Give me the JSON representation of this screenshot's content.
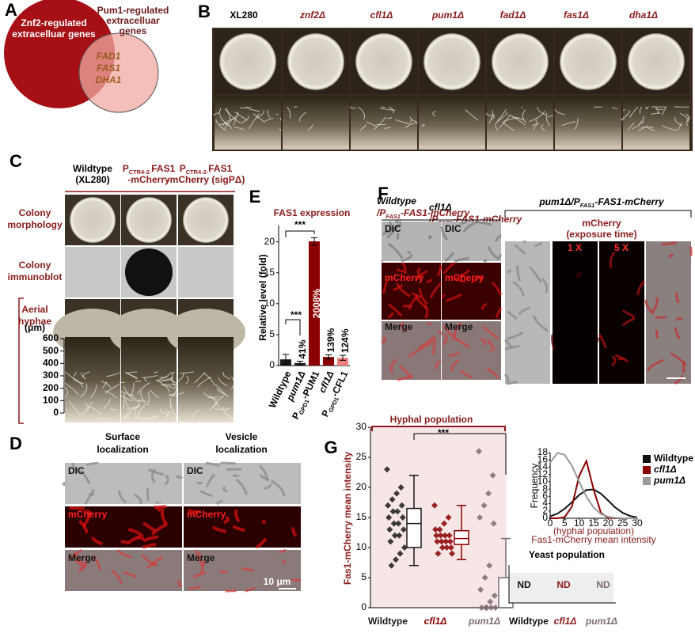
{
  "panel_a": {
    "label": "A",
    "set1": [
      "Znf2-regulated",
      "extracelluar genes"
    ],
    "set2": [
      "Pum1-regulated",
      "extracelluar",
      "genes"
    ],
    "overlap": [
      "FAD1",
      "FAS1",
      "DHA1"
    ]
  },
  "panel_b": {
    "label": "B",
    "strains": [
      "XL280",
      "znf2Δ",
      "cfl1Δ",
      "pum1Δ",
      "fad1Δ",
      "fas1Δ",
      "dha1Δ"
    ]
  },
  "panel_c": {
    "label": "C",
    "columns": [
      [
        "Wildtype",
        "(XL280)"
      ],
      [
        [
          {
            "text": "P"
          },
          {
            "text": "CTR4-2-",
            "sub": true
          },
          {
            "text": "FAS1"
          }
        ],
        "-mCherry"
      ],
      [
        [
          {
            "text": "P"
          },
          {
            "text": "CTR4-2-",
            "sub": true
          },
          {
            "text": "FAS1"
          }
        ],
        "-mCherry (sigPΔ)"
      ]
    ],
    "rows": [
      [
        "Colony",
        "morphology"
      ],
      [
        "Colony",
        "immunoblot"
      ],
      [
        "Aerial",
        "hyphae"
      ]
    ],
    "unit": "(μm)",
    "hyphae_ticks": [
      600,
      500,
      400,
      300,
      200,
      100,
      0
    ]
  },
  "panel_d": {
    "label": "D",
    "columns": [
      [
        "Surface",
        "localization"
      ],
      [
        "Vesicle",
        "localization"
      ]
    ],
    "rows": [
      "DIC",
      "mCherry",
      "Merge"
    ],
    "scale": "10 μm"
  },
  "panel_f": {
    "label": "F",
    "headers": [
      [
        "Wildtype",
        [
          {
            "text": "/P"
          },
          {
            "text": "FAS1",
            "sub": true
          },
          {
            "text": "-FAS1-mCherry"
          }
        ]
      ],
      [
        "cfl1Δ",
        [
          {
            "text": "/P"
          },
          {
            "text": "FAS1",
            "sub": true
          },
          {
            "text": "-FAS1-mCherry"
          }
        ]
      ]
    ],
    "rows": [
      "DIC",
      "mCherry",
      "Merge"
    ],
    "right_title": [
      {
        "text": "pum1Δ/P"
      },
      {
        "text": "FAS1",
        "sub": true
      },
      {
        "text": "-FAS1-mCherry"
      }
    ],
    "channel": "mCherry",
    "exposure": "(exposure time)",
    "exposures": [
      "1 X",
      "5 X"
    ]
  },
  "panel_g": {
    "label": "G",
    "hyphal": "Hyphal population",
    "significance": "***",
    "yeast": "Yeast population",
    "nd": [
      "ND",
      "ND",
      "ND"
    ],
    "yeast_categories": [
      "Wildtype",
      "cfl1Δ",
      "pum1Δ"
    ]
  },
  "chart_data": [
    {
      "type": "bar",
      "label": "E",
      "title": "FAS1 expression",
      "ylabel": "Relative level (fold)",
      "categories": [
        "Wildtype",
        "pum1Δ",
        [
          {
            "text": "P"
          },
          {
            "text": "GPD1",
            "sub": true
          },
          {
            "text": "-PUM1"
          }
        ],
        "cfl1Δ",
        [
          {
            "text": "P"
          },
          {
            "text": "GPD1",
            "sub": true
          },
          {
            "text": "-CFL1"
          }
        ]
      ],
      "values": [
        1.0,
        0.41,
        20.08,
        1.39,
        1.24
      ],
      "errors": [
        0.8,
        0.3,
        0.6,
        0.35,
        0.4
      ],
      "value_labels": [
        null,
        "41%",
        "2008%",
        "139%",
        "124%"
      ],
      "colors": [
        "#1a1a1a",
        "#1a1a1a",
        "#8b0000",
        "#8b0000",
        "#f08080"
      ],
      "ylim": [
        0,
        22
      ],
      "yticks": [
        0,
        5,
        10,
        15,
        20
      ],
      "annotations": [
        "***",
        "***"
      ]
    },
    {
      "type": "box",
      "ylabel": "Fas1-mCherry mean intensity",
      "ylim": [
        0,
        30
      ],
      "yticks": [
        0,
        5,
        10,
        15,
        20,
        25,
        30
      ],
      "categories": [
        "Wildtype",
        "cfl1Δ",
        "pum1Δ"
      ],
      "boxes": [
        {
          "color": "#1a1a1a",
          "min": 7,
          "q1": 10,
          "median": 14,
          "q3": 16.5,
          "max": 22,
          "points": [
            23,
            20,
            19,
            18,
            17,
            17,
            16,
            16,
            15,
            15,
            14,
            14,
            13,
            13,
            12,
            12,
            11,
            10,
            9,
            8,
            7
          ]
        },
        {
          "color": "#8b0000",
          "min": 8,
          "q1": 10.5,
          "median": 11.5,
          "q3": 12.8,
          "max": 17,
          "points": [
            17,
            15,
            14,
            13,
            13,
            12,
            12,
            12,
            12,
            11,
            11,
            11,
            11,
            10,
            10,
            10,
            9,
            9
          ]
        },
        {
          "color": "#7d6b73",
          "min": 0,
          "q1": 0,
          "median": 0,
          "q3": 5,
          "max": 11.5,
          "points": [
            26,
            22,
            19,
            17,
            15,
            14,
            7,
            5,
            3,
            2,
            1,
            0,
            0,
            0,
            0,
            0
          ]
        }
      ]
    },
    {
      "type": "line",
      "ylabel": "Frequency",
      "xlabel": [
        "(hyphal population)",
        "Fas1-mCherry mean intensity"
      ],
      "x": [
        0,
        2.5,
        5,
        7.5,
        10,
        12.5,
        15,
        17.5,
        20,
        22.5,
        25,
        27.5,
        30
      ],
      "xlim": [
        0,
        30
      ],
      "xticks": [
        0,
        5,
        10,
        15,
        20,
        25,
        30
      ],
      "ylim": [
        0,
        18
      ],
      "yticks": [
        0,
        2,
        4,
        6,
        8,
        10,
        12,
        14,
        16,
        18
      ],
      "legend": "right",
      "series": [
        {
          "name": "Wildtype",
          "color": "#111111",
          "values": [
            0.53,
            1.27,
            2.6,
            4.4,
            6.4,
            7.75,
            7.9,
            6.75,
            4.85,
            2.9,
            1.5,
            0.64,
            0.23
          ]
        },
        {
          "name": "cfl1Δ",
          "color": "#8b0000",
          "values": [
            0,
            0,
            0.3,
            3.2,
            11.6,
            15.7,
            7.8,
            1.5,
            0.1,
            0,
            0,
            0,
            0
          ]
        },
        {
          "name": "pum1Δ",
          "color": "#999999",
          "values": [
            15.2,
            17.9,
            17.4,
            14.4,
            10.0,
            5.9,
            2.9,
            1.2,
            0.4,
            0.1,
            0,
            0,
            0
          ]
        }
      ]
    }
  ]
}
